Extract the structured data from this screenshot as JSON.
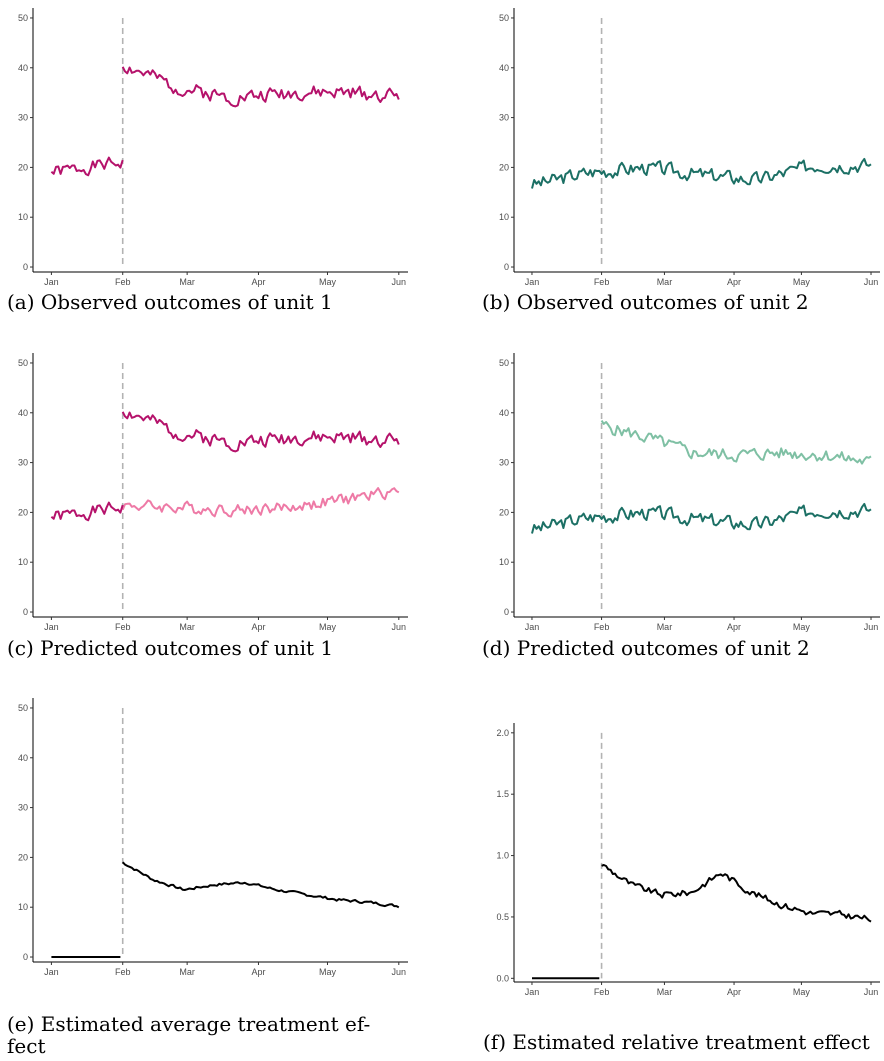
{
  "captions": {
    "a": "(a) Observed outcomes of unit 1",
    "b": "(b) Observed outcomes of unit 2",
    "c": "(c) Predicted outcomes of unit 1",
    "d": "(d) Predicted outcomes of unit 2",
    "e_line1": "(e) Estimated average treatment ef-",
    "e_line2": "fect",
    "f": "(f) Estimated relative treatment effect"
  },
  "chart_data": [
    {
      "id": "a",
      "type": "line",
      "x_ticks": [
        "Jan",
        "Feb",
        "Mar",
        "Apr",
        "May",
        "Jun"
      ],
      "y_ticks": [
        0,
        10,
        20,
        30,
        40,
        50
      ],
      "ylim": [
        -1,
        52
      ],
      "treatment_start": "Feb",
      "series": [
        {
          "color": "#b5126b",
          "segments": [
            {
              "start": 0,
              "end": 31,
              "base": [
                19,
                21
              ],
              "noise": 1.2,
              "seed": 1
            },
            {
              "start": 31,
              "end": 151,
              "base": [
                40.5,
                36,
                34,
                35,
                35,
                34.5
              ],
              "noise": 1.3,
              "seed": 2
            }
          ]
        }
      ]
    },
    {
      "id": "b",
      "type": "line",
      "x_ticks": [
        "Jan",
        "Feb",
        "Mar",
        "Apr",
        "May",
        "Jun"
      ],
      "y_ticks": [
        0,
        10,
        20,
        30,
        40,
        50
      ],
      "ylim": [
        -1,
        52
      ],
      "treatment_start": "Feb",
      "series": [
        {
          "color": "#1c7065",
          "segments": [
            {
              "start": 0,
              "end": 151,
              "base": [
                16.5,
                19,
                20,
                18.5,
                17.5,
                20.5,
                20.5
              ],
              "noise": 1.3,
              "seed": 3
            }
          ]
        }
      ]
    },
    {
      "id": "c",
      "type": "line",
      "x_ticks": [
        "Jan",
        "Feb",
        "Mar",
        "Apr",
        "May",
        "Jun"
      ],
      "y_ticks": [
        0,
        10,
        20,
        30,
        40,
        50
      ],
      "ylim": [
        -1,
        52
      ],
      "treatment_start": "Feb",
      "series": [
        {
          "color": "#ee7aa6",
          "segments": [
            {
              "start": 31,
              "end": 151,
              "base": [
                21.5,
                21,
                20.5,
                21,
                22.5,
                24.5
              ],
              "noise": 1.1,
              "seed": 4
            }
          ]
        },
        {
          "color": "#b5126b",
          "segments": [
            {
              "start": 0,
              "end": 31,
              "base": [
                19,
                21
              ],
              "noise": 1.2,
              "seed": 1
            },
            {
              "start": 31,
              "end": 151,
              "base": [
                40.5,
                36,
                34,
                35,
                35,
                34.5
              ],
              "noise": 1.3,
              "seed": 2
            }
          ]
        }
      ]
    },
    {
      "id": "d",
      "type": "line",
      "x_ticks": [
        "Jan",
        "Feb",
        "Mar",
        "Apr",
        "May",
        "Jun"
      ],
      "y_ticks": [
        0,
        10,
        20,
        30,
        40,
        50
      ],
      "ylim": [
        -1,
        52
      ],
      "treatment_start": "Feb",
      "series": [
        {
          "color": "#7fc0a4",
          "segments": [
            {
              "start": 31,
              "end": 151,
              "base": [
                37.5,
                35,
                32,
                31.5,
                32,
                31.5,
                30
              ],
              "noise": 1.2,
              "seed": 5
            }
          ]
        },
        {
          "color": "#1c7065",
          "segments": [
            {
              "start": 0,
              "end": 151,
              "base": [
                16.5,
                19,
                20,
                18.5,
                17.5,
                20.5,
                20.5
              ],
              "noise": 1.3,
              "seed": 3
            }
          ]
        }
      ]
    },
    {
      "id": "e",
      "type": "line",
      "x_ticks": [
        "Jan",
        "Feb",
        "Mar",
        "Apr",
        "May",
        "Jun"
      ],
      "y_ticks": [
        0,
        10,
        20,
        30,
        40,
        50
      ],
      "ylim": [
        -1,
        52
      ],
      "treatment_start": "Feb",
      "series": [
        {
          "color": "#000000",
          "segments": [
            {
              "start": 0,
              "end": 30,
              "base": [
                0,
                0
              ],
              "noise": 0,
              "seed": 6
            },
            {
              "start": 31,
              "end": 151,
              "base": [
                19,
                15.5,
                13.5,
                14.5,
                15,
                13.5,
                12.5,
                11.5,
                11,
                10.2
              ],
              "noise": 0.25,
              "seed": 7
            }
          ]
        }
      ]
    },
    {
      "id": "f",
      "type": "line",
      "x_ticks": [
        "Jan",
        "Feb",
        "Mar",
        "Apr",
        "May",
        "Jun"
      ],
      "y_ticks": [
        "0.0",
        "0.5",
        "1.0",
        "1.5",
        "2.0"
      ],
      "ylim": [
        -0.03,
        2.08
      ],
      "treatment_start": "Feb",
      "series": [
        {
          "color": "#000000",
          "segments": [
            {
              "start": 0,
              "end": 30,
              "base": [
                0,
                0
              ],
              "noise": 0,
              "seed": 8
            },
            {
              "start": 31,
              "end": 151,
              "base": [
                0.93,
                0.76,
                0.68,
                0.7,
                0.86,
                0.7,
                0.6,
                0.53,
                0.52,
                0.48
              ],
              "noise": 0.025,
              "seed": 9
            }
          ]
        }
      ]
    }
  ]
}
